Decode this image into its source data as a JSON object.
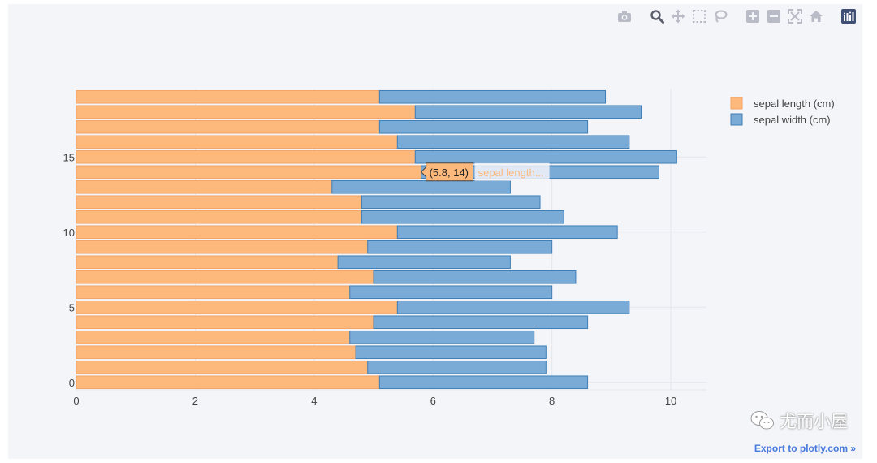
{
  "chart_data": {
    "type": "bar",
    "orientation": "horizontal",
    "barmode": "stack",
    "y": [
      0,
      1,
      2,
      3,
      4,
      5,
      6,
      7,
      8,
      9,
      10,
      11,
      12,
      13,
      14,
      15,
      16,
      17,
      18,
      19
    ],
    "series": [
      {
        "name": "sepal length (cm)",
        "color": "#fdb87b",
        "values": [
          5.1,
          4.9,
          4.7,
          4.6,
          5.0,
          5.4,
          4.6,
          5.0,
          4.4,
          4.9,
          5.4,
          4.8,
          4.8,
          4.3,
          5.8,
          5.7,
          5.4,
          5.1,
          5.7,
          5.1
        ]
      },
      {
        "name": "sepal width (cm)",
        "color": "#7aaad6",
        "values": [
          3.5,
          3.0,
          3.2,
          3.1,
          3.6,
          3.9,
          3.4,
          3.4,
          2.9,
          3.1,
          3.7,
          3.4,
          3.0,
          3.0,
          4.0,
          4.4,
          3.9,
          3.5,
          3.8,
          3.8
        ]
      }
    ],
    "xlim": [
      0,
      10.6
    ],
    "ylim": [
      -0.5,
      19.5
    ],
    "x_ticks": [
      "0",
      "2",
      "4",
      "6",
      "8",
      "10"
    ],
    "y_ticks": [
      "0",
      "5",
      "10",
      "15"
    ],
    "grid": true,
    "legend_position": "top-right",
    "hover": {
      "point_index": 14,
      "label": "(5.8, 14)",
      "trace_label": "sepal length..."
    }
  },
  "toolbar": {
    "icons": [
      "camera-icon",
      "zoom-icon",
      "pan-icon",
      "box-select-icon",
      "lasso-icon",
      "zoom-in-icon",
      "zoom-out-icon",
      "autoscale-icon",
      "reset-axes-icon",
      "plotly-logo-icon"
    ],
    "export_label": "Export to plotly.com »"
  },
  "watermark": {
    "text": "尤而小屋"
  },
  "colors": {
    "background": "#f4f5f9",
    "grid": "#e3e5ec",
    "link": "#447adb"
  }
}
